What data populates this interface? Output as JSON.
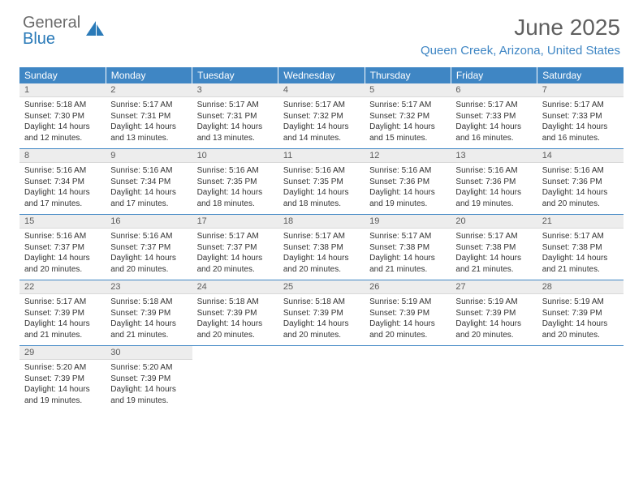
{
  "logo": {
    "text_gray": "General",
    "text_blue": "Blue"
  },
  "title": "June 2025",
  "location": "Queen Creek, Arizona, United States",
  "colors": {
    "header_bg": "#3f86c4",
    "header_text": "#ffffff",
    "daynum_bg": "#ededed",
    "daynum_text": "#5b5b5b",
    "body_text": "#333333",
    "title_text": "#5f5f5f",
    "location_text": "#3f86c4",
    "logo_gray": "#6b6b6b",
    "logo_blue": "#2a7ab8",
    "week_sep": "#3f86c4"
  },
  "typography": {
    "title_fontsize": 28,
    "location_fontsize": 15,
    "header_fontsize": 12,
    "daynum_fontsize": 11,
    "content_fontsize": 10
  },
  "day_headers": [
    "Sunday",
    "Monday",
    "Tuesday",
    "Wednesday",
    "Thursday",
    "Friday",
    "Saturday"
  ],
  "weeks": [
    [
      {
        "n": "1",
        "sr": "5:18 AM",
        "ss": "7:30 PM",
        "dl": "14 hours and 12 minutes."
      },
      {
        "n": "2",
        "sr": "5:17 AM",
        "ss": "7:31 PM",
        "dl": "14 hours and 13 minutes."
      },
      {
        "n": "3",
        "sr": "5:17 AM",
        "ss": "7:31 PM",
        "dl": "14 hours and 13 minutes."
      },
      {
        "n": "4",
        "sr": "5:17 AM",
        "ss": "7:32 PM",
        "dl": "14 hours and 14 minutes."
      },
      {
        "n": "5",
        "sr": "5:17 AM",
        "ss": "7:32 PM",
        "dl": "14 hours and 15 minutes."
      },
      {
        "n": "6",
        "sr": "5:17 AM",
        "ss": "7:33 PM",
        "dl": "14 hours and 16 minutes."
      },
      {
        "n": "7",
        "sr": "5:17 AM",
        "ss": "7:33 PM",
        "dl": "14 hours and 16 minutes."
      }
    ],
    [
      {
        "n": "8",
        "sr": "5:16 AM",
        "ss": "7:34 PM",
        "dl": "14 hours and 17 minutes."
      },
      {
        "n": "9",
        "sr": "5:16 AM",
        "ss": "7:34 PM",
        "dl": "14 hours and 17 minutes."
      },
      {
        "n": "10",
        "sr": "5:16 AM",
        "ss": "7:35 PM",
        "dl": "14 hours and 18 minutes."
      },
      {
        "n": "11",
        "sr": "5:16 AM",
        "ss": "7:35 PM",
        "dl": "14 hours and 18 minutes."
      },
      {
        "n": "12",
        "sr": "5:16 AM",
        "ss": "7:36 PM",
        "dl": "14 hours and 19 minutes."
      },
      {
        "n": "13",
        "sr": "5:16 AM",
        "ss": "7:36 PM",
        "dl": "14 hours and 19 minutes."
      },
      {
        "n": "14",
        "sr": "5:16 AM",
        "ss": "7:36 PM",
        "dl": "14 hours and 20 minutes."
      }
    ],
    [
      {
        "n": "15",
        "sr": "5:16 AM",
        "ss": "7:37 PM",
        "dl": "14 hours and 20 minutes."
      },
      {
        "n": "16",
        "sr": "5:16 AM",
        "ss": "7:37 PM",
        "dl": "14 hours and 20 minutes."
      },
      {
        "n": "17",
        "sr": "5:17 AM",
        "ss": "7:37 PM",
        "dl": "14 hours and 20 minutes."
      },
      {
        "n": "18",
        "sr": "5:17 AM",
        "ss": "7:38 PM",
        "dl": "14 hours and 20 minutes."
      },
      {
        "n": "19",
        "sr": "5:17 AM",
        "ss": "7:38 PM",
        "dl": "14 hours and 21 minutes."
      },
      {
        "n": "20",
        "sr": "5:17 AM",
        "ss": "7:38 PM",
        "dl": "14 hours and 21 minutes."
      },
      {
        "n": "21",
        "sr": "5:17 AM",
        "ss": "7:38 PM",
        "dl": "14 hours and 21 minutes."
      }
    ],
    [
      {
        "n": "22",
        "sr": "5:17 AM",
        "ss": "7:39 PM",
        "dl": "14 hours and 21 minutes."
      },
      {
        "n": "23",
        "sr": "5:18 AM",
        "ss": "7:39 PM",
        "dl": "14 hours and 21 minutes."
      },
      {
        "n": "24",
        "sr": "5:18 AM",
        "ss": "7:39 PM",
        "dl": "14 hours and 20 minutes."
      },
      {
        "n": "25",
        "sr": "5:18 AM",
        "ss": "7:39 PM",
        "dl": "14 hours and 20 minutes."
      },
      {
        "n": "26",
        "sr": "5:19 AM",
        "ss": "7:39 PM",
        "dl": "14 hours and 20 minutes."
      },
      {
        "n": "27",
        "sr": "5:19 AM",
        "ss": "7:39 PM",
        "dl": "14 hours and 20 minutes."
      },
      {
        "n": "28",
        "sr": "5:19 AM",
        "ss": "7:39 PM",
        "dl": "14 hours and 20 minutes."
      }
    ],
    [
      {
        "n": "29",
        "sr": "5:20 AM",
        "ss": "7:39 PM",
        "dl": "14 hours and 19 minutes."
      },
      {
        "n": "30",
        "sr": "5:20 AM",
        "ss": "7:39 PM",
        "dl": "14 hours and 19 minutes."
      },
      null,
      null,
      null,
      null,
      null
    ]
  ],
  "labels": {
    "sunrise_prefix": "Sunrise: ",
    "sunset_prefix": "Sunset: ",
    "daylight_prefix": "Daylight: "
  }
}
